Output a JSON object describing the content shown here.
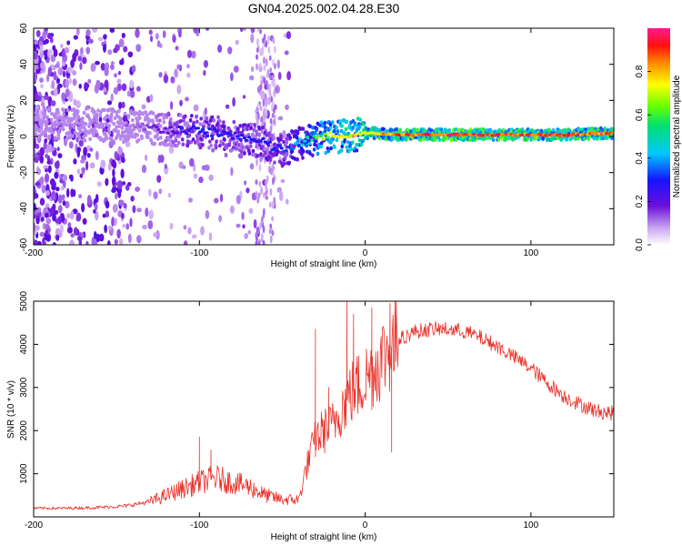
{
  "colors": {
    "snr_line": "#e8322a",
    "frame": "#000000",
    "background": "#ffffff"
  },
  "colormap_name": "rainbow",
  "chart_data": [
    {
      "type": "heatmap",
      "title": "GN04.2025.002.04.28.E30",
      "xlabel": "Height of straight line (km)",
      "ylabel": "Frequency (Hz)",
      "xlim": [
        -200,
        150
      ],
      "ylim": [
        -60,
        60
      ],
      "x_ticks": [
        -200,
        -100,
        0,
        100
      ],
      "y_ticks": [
        -60,
        -40,
        -20,
        0,
        20,
        40,
        60
      ],
      "grid": false,
      "colorbar": {
        "label": "Normalized spectral amplitude",
        "range": [
          0.0,
          1.0
        ],
        "ticks": [
          0.0,
          0.2,
          0.4,
          0.6,
          0.8
        ]
      },
      "ridge": {
        "description_points_x": [
          -200,
          -150,
          -120,
          -100,
          -80,
          -60,
          -50,
          -40,
          -30,
          -20,
          -10,
          0,
          20,
          50,
          80,
          100,
          120,
          150
        ],
        "frequency_hz": [
          8,
          6,
          4,
          3,
          1,
          -4,
          -8,
          -4,
          -1,
          0,
          0,
          2,
          1,
          1,
          1,
          1,
          1,
          2
        ],
        "amplitude": [
          0.05,
          0.08,
          0.2,
          0.3,
          0.3,
          0.3,
          0.3,
          0.45,
          0.6,
          0.75,
          0.8,
          0.8,
          0.9,
          0.95,
          0.95,
          0.92,
          0.9,
          0.9
        ]
      }
    },
    {
      "type": "line",
      "xlabel": "Height of straight line (km)",
      "ylabel": "SNR (10 * v/v)",
      "xlim": [
        -200,
        150
      ],
      "ylim": [
        0,
        5000
      ],
      "x_ticks": [
        -200,
        -100,
        0,
        100
      ],
      "y_ticks": [
        1000,
        2000,
        3000,
        4000,
        5000
      ],
      "grid": false,
      "series": [
        {
          "x": [
            -200,
            -180,
            -160,
            -145,
            -130,
            -120,
            -110,
            -100,
            -90,
            -80,
            -70,
            -60,
            -50,
            -40,
            -35,
            -30,
            -25,
            -20,
            -15,
            -10,
            -5,
            0,
            5,
            10,
            20,
            30,
            40,
            50,
            60,
            70,
            80,
            90,
            100,
            110,
            120,
            130,
            140,
            150
          ],
          "values": [
            200,
            200,
            220,
            250,
            350,
            500,
            650,
            800,
            900,
            800,
            700,
            500,
            400,
            400,
            1200,
            1800,
            2000,
            2100,
            2500,
            2800,
            3000,
            3200,
            3400,
            3700,
            4100,
            4300,
            4350,
            4350,
            4300,
            4150,
            3950,
            3700,
            3450,
            3100,
            2800,
            2600,
            2450,
            2400
          ],
          "spikes": [
            {
              "x": -100,
              "value": 1850
            },
            {
              "x": -93,
              "value": 1550
            },
            {
              "x": -30,
              "value": 4350
            },
            {
              "x": -22,
              "value": 3000
            },
            {
              "x": -11,
              "value": 5000
            },
            {
              "x": -7,
              "value": 4700
            },
            {
              "x": 4,
              "value": 4850
            },
            {
              "x": 15,
              "value": 4950
            },
            {
              "x": 16,
              "value": 1500
            }
          ]
        }
      ]
    }
  ]
}
